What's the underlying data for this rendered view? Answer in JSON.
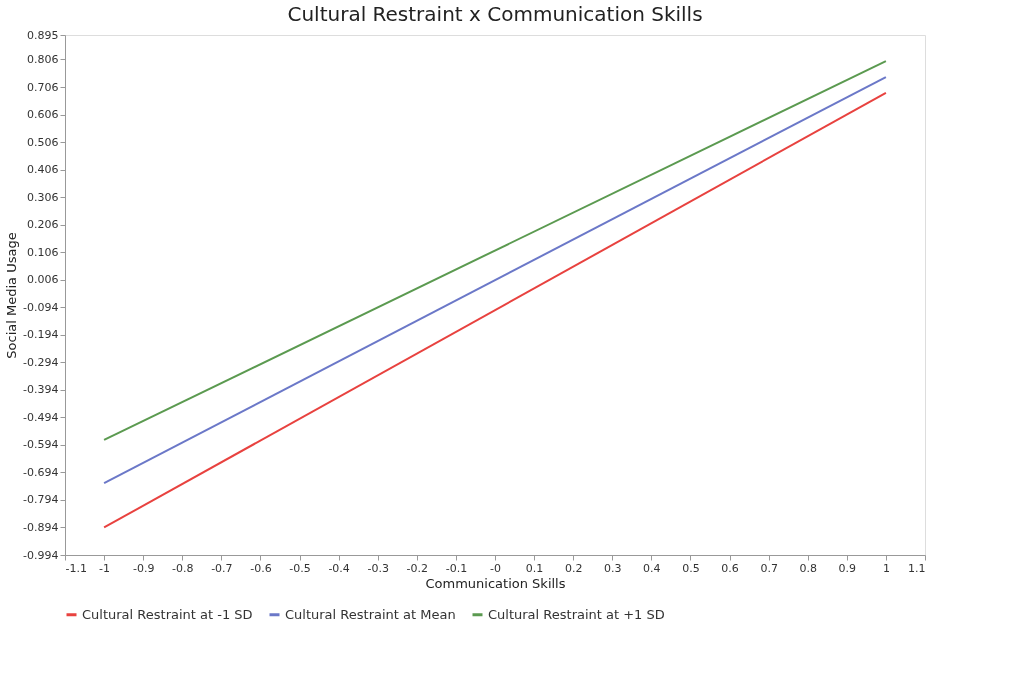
{
  "chart_data": {
    "type": "line",
    "title": "Cultural Restraint x Communication Skills",
    "xlabel": "Communication Skills",
    "ylabel": "Social Media Usage",
    "x": [
      -1,
      1
    ],
    "series": [
      {
        "name": "Cultural Restraint at -1 SD",
        "color": "#e8423f",
        "values": [
          -0.894,
          0.685
        ]
      },
      {
        "name": "Cultural Restraint at Mean",
        "color": "#6b78c8",
        "values": [
          -0.733,
          0.742
        ]
      },
      {
        "name": "Cultural Restraint at +1 SD",
        "color": "#5b9a50",
        "values": [
          -0.576,
          0.8
        ]
      }
    ],
    "xlim": [
      -1.1,
      1.1
    ],
    "xticks": [
      -1.1,
      -1,
      -0.9,
      -0.8,
      -0.7,
      -0.6,
      -0.5,
      -0.4,
      -0.3,
      -0.2,
      -0.1,
      {
        "value": 0,
        "label": "-0"
      },
      0.1,
      0.2,
      0.3,
      0.4,
      0.5,
      0.6,
      0.7,
      0.8,
      0.9,
      1,
      1.1
    ],
    "ylim": [
      -0.994,
      0.895
    ],
    "yticks": [
      0.895,
      0.806,
      0.706,
      0.606,
      0.506,
      0.406,
      0.306,
      0.206,
      0.106,
      0.006,
      -0.094,
      -0.194,
      -0.294,
      -0.394,
      -0.494,
      -0.594,
      -0.694,
      -0.794,
      -0.894,
      -0.994
    ],
    "grid": false,
    "legend": "bottom",
    "marker": "none",
    "line_style": "solid"
  }
}
